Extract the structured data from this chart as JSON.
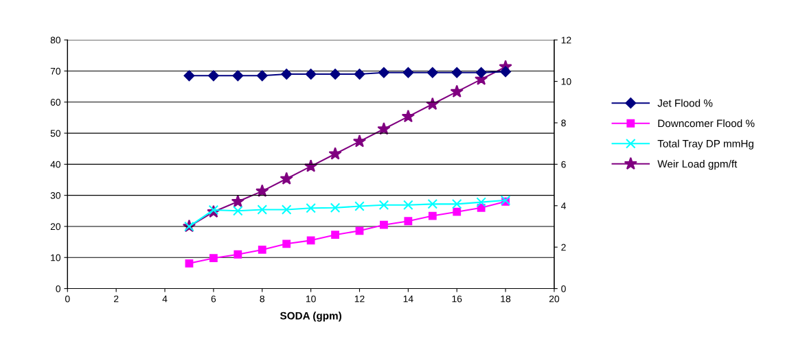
{
  "chart_data": {
    "type": "line",
    "xlabel": "SODA (gpm)",
    "x": [
      5,
      6,
      7,
      8,
      9,
      10,
      11,
      12,
      13,
      14,
      15,
      16,
      17,
      18
    ],
    "series": [
      {
        "name": "Jet Flood %",
        "color": "#000080",
        "marker": "diamond",
        "values": [
          68.5,
          68.5,
          68.5,
          68.5,
          69,
          69,
          69,
          69,
          69.5,
          69.5,
          69.5,
          69.5,
          69.5,
          69.8
        ]
      },
      {
        "name": "Downcomer Flood %",
        "color": "#ff00ff",
        "marker": "square",
        "values": [
          8.1,
          9.8,
          11.0,
          12.5,
          14.4,
          15.5,
          17.3,
          18.6,
          20.5,
          21.7,
          23.4,
          24.7,
          26.0,
          28.0
        ]
      },
      {
        "name": "Total Tray DP mmHg",
        "color": "#00ffff",
        "marker": "cross",
        "values": [
          20.0,
          25.3,
          25.0,
          25.4,
          25.4,
          25.9,
          26.0,
          26.5,
          26.9,
          26.9,
          27.2,
          27.2,
          27.8,
          28.4
        ]
      },
      {
        "name": "Weir Load gpm/ft",
        "color": "#800080",
        "marker": "star",
        "axis": "y2",
        "values": [
          3.0,
          3.7,
          4.2,
          4.7,
          5.3,
          5.9,
          6.5,
          7.1,
          7.7,
          8.3,
          8.9,
          9.5,
          10.1,
          10.7
        ]
      }
    ],
    "xlim": [
      0,
      20
    ],
    "xticks": [
      0,
      2,
      4,
      6,
      8,
      10,
      12,
      14,
      16,
      18,
      20
    ],
    "ylim": [
      0,
      80
    ],
    "yticks": [
      0,
      10,
      20,
      30,
      40,
      50,
      60,
      70,
      80
    ],
    "y2lim": [
      0,
      12
    ],
    "y2ticks": [
      0,
      2,
      4,
      6,
      8,
      10,
      12
    ],
    "grid": "y",
    "legend": "right",
    "line_style": "solid"
  }
}
